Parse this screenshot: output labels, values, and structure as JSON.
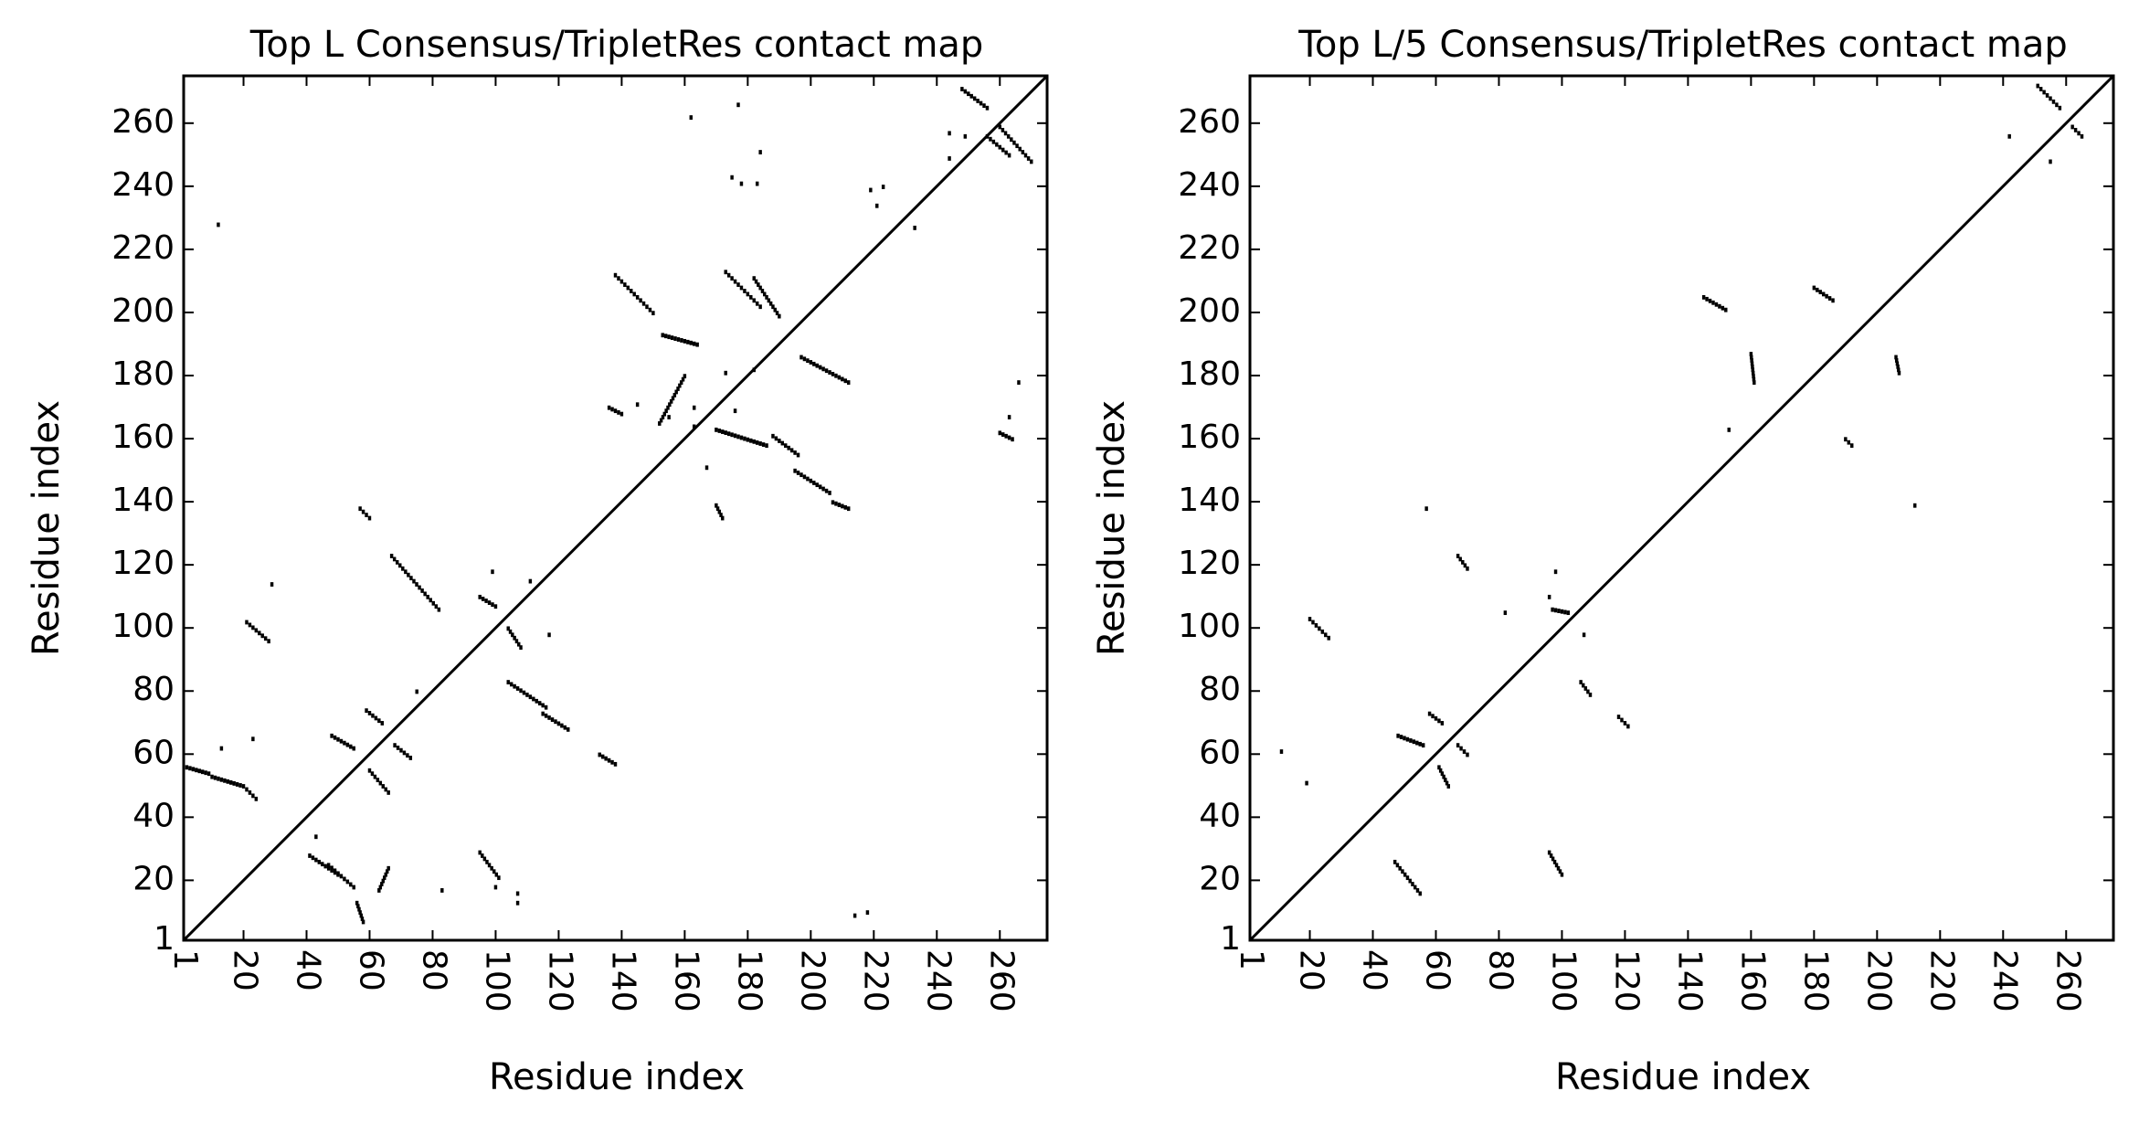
{
  "chart_data": [
    {
      "type": "scatter",
      "title": "Top L Consensus/TripletRes contact map",
      "xlabel": "Residue index",
      "ylabel": "Residue index",
      "xlim": [
        1,
        275
      ],
      "ylim": [
        1,
        275
      ],
      "x_ticks": [
        1,
        20,
        40,
        60,
        80,
        100,
        120,
        140,
        160,
        180,
        200,
        220,
        240,
        260
      ],
      "y_ticks": [
        1,
        20,
        40,
        60,
        80,
        100,
        120,
        140,
        160,
        180,
        200,
        220,
        240,
        260
      ],
      "grid": false,
      "diagonal": true,
      "segments": [
        {
          "x": [
            2,
            9
          ],
          "y": [
            56,
            54
          ]
        },
        {
          "x": [
            10,
            20
          ],
          "y": [
            53,
            50
          ]
        },
        {
          "x": [
            21,
            24
          ],
          "y": [
            49,
            46
          ]
        },
        {
          "x": [
            21,
            28
          ],
          "y": [
            102,
            96
          ]
        },
        {
          "x": [
            47,
            55
          ],
          "y": [
            25,
            18
          ]
        },
        {
          "x": [
            41,
            50
          ],
          "y": [
            28,
            22
          ]
        },
        {
          "x": [
            48,
            55
          ],
          "y": [
            66,
            62
          ]
        },
        {
          "x": [
            59,
            64
          ],
          "y": [
            74,
            70
          ]
        },
        {
          "x": [
            60,
            66
          ],
          "y": [
            55,
            48
          ]
        },
        {
          "x": [
            68,
            73
          ],
          "y": [
            63,
            59
          ]
        },
        {
          "x": [
            67,
            82
          ],
          "y": [
            123,
            106
          ]
        },
        {
          "x": [
            95,
            101
          ],
          "y": [
            29,
            21
          ]
        },
        {
          "x": [
            95,
            100
          ],
          "y": [
            110,
            107
          ]
        },
        {
          "x": [
            104,
            108
          ],
          "y": [
            100,
            94
          ]
        },
        {
          "x": [
            104,
            116
          ],
          "y": [
            83,
            75
          ]
        },
        {
          "x": [
            115,
            123
          ],
          "y": [
            73,
            68
          ]
        },
        {
          "x": [
            57,
            60
          ],
          "y": [
            138,
            135
          ]
        },
        {
          "x": [
            56,
            58
          ],
          "y": [
            13,
            7
          ]
        },
        {
          "x": [
            63,
            66
          ],
          "y": [
            17,
            24
          ]
        },
        {
          "x": [
            133,
            138
          ],
          "y": [
            60,
            57
          ]
        },
        {
          "x": [
            136,
            140
          ],
          "y": [
            170,
            168
          ]
        },
        {
          "x": [
            138,
            150
          ],
          "y": [
            212,
            200
          ]
        },
        {
          "x": [
            153,
            164
          ],
          "y": [
            193,
            190
          ]
        },
        {
          "x": [
            170,
            172
          ],
          "y": [
            139,
            135
          ]
        },
        {
          "x": [
            173,
            184
          ],
          "y": [
            213,
            202
          ]
        },
        {
          "x": [
            182,
            190
          ],
          "y": [
            211,
            199
          ]
        },
        {
          "x": [
            188,
            196
          ],
          "y": [
            161,
            155
          ]
        },
        {
          "x": [
            195,
            206
          ],
          "y": [
            150,
            143
          ]
        },
        {
          "x": [
            207,
            212
          ],
          "y": [
            140,
            138
          ]
        },
        {
          "x": [
            197,
            212
          ],
          "y": [
            186,
            178
          ]
        },
        {
          "x": [
            170,
            186
          ],
          "y": [
            163,
            158
          ]
        },
        {
          "x": [
            152,
            160
          ],
          "y": [
            165,
            180
          ]
        },
        {
          "x": [
            248,
            256
          ],
          "y": [
            271,
            265
          ]
        },
        {
          "x": [
            256,
            263
          ],
          "y": [
            256,
            250
          ]
        },
        {
          "x": [
            260,
            264
          ],
          "y": [
            162,
            160
          ]
        },
        {
          "x": [
            260,
            270
          ],
          "y": [
            259,
            248
          ]
        }
      ],
      "points": [
        [
          12,
          228
        ],
        [
          29,
          114
        ],
        [
          99,
          118
        ],
        [
          111,
          115
        ],
        [
          117,
          98
        ],
        [
          23,
          65
        ],
        [
          13,
          62
        ],
        [
          43,
          34
        ],
        [
          83,
          17
        ],
        [
          107,
          16
        ],
        [
          107,
          13
        ],
        [
          100,
          18
        ],
        [
          75,
          80
        ],
        [
          162,
          262
        ],
        [
          177,
          266
        ],
        [
          184,
          251
        ],
        [
          175,
          243
        ],
        [
          178,
          241
        ],
        [
          183,
          241
        ],
        [
          219,
          239
        ],
        [
          223,
          240
        ],
        [
          221,
          234
        ],
        [
          233,
          227
        ],
        [
          244,
          257
        ],
        [
          244,
          249
        ],
        [
          249,
          256
        ],
        [
          263,
          167
        ],
        [
          266,
          178
        ],
        [
          218,
          10
        ],
        [
          214,
          9
        ],
        [
          167,
          151
        ],
        [
          163,
          164
        ],
        [
          176,
          169
        ],
        [
          182,
          182
        ],
        [
          173,
          181
        ],
        [
          145,
          171
        ],
        [
          155,
          167
        ],
        [
          163,
          170
        ]
      ]
    },
    {
      "type": "scatter",
      "title": "Top L/5 Consensus/TripletRes contact map",
      "xlabel": "Residue index",
      "ylabel": "Residue index",
      "xlim": [
        1,
        275
      ],
      "ylim": [
        1,
        275
      ],
      "x_ticks": [
        1,
        20,
        40,
        60,
        80,
        100,
        120,
        140,
        160,
        180,
        200,
        220,
        240,
        260
      ],
      "y_ticks": [
        1,
        20,
        40,
        60,
        80,
        100,
        120,
        140,
        160,
        180,
        200,
        220,
        240,
        260
      ],
      "grid": false,
      "diagonal": true,
      "segments": [
        {
          "x": [
            20,
            26
          ],
          "y": [
            103,
            97
          ]
        },
        {
          "x": [
            47,
            55
          ],
          "y": [
            26,
            16
          ]
        },
        {
          "x": [
            48,
            56
          ],
          "y": [
            66,
            63
          ]
        },
        {
          "x": [
            58,
            62
          ],
          "y": [
            73,
            70
          ]
        },
        {
          "x": [
            61,
            64
          ],
          "y": [
            56,
            50
          ]
        },
        {
          "x": [
            67,
            70
          ],
          "y": [
            63,
            60
          ]
        },
        {
          "x": [
            67,
            70
          ],
          "y": [
            123,
            119
          ]
        },
        {
          "x": [
            96,
            100
          ],
          "y": [
            29,
            22
          ]
        },
        {
          "x": [
            97,
            102
          ],
          "y": [
            106,
            105
          ]
        },
        {
          "x": [
            106,
            109
          ],
          "y": [
            83,
            79
          ]
        },
        {
          "x": [
            118,
            121
          ],
          "y": [
            72,
            69
          ]
        },
        {
          "x": [
            145,
            152
          ],
          "y": [
            205,
            201
          ]
        },
        {
          "x": [
            160,
            161
          ],
          "y": [
            187,
            178
          ]
        },
        {
          "x": [
            180,
            186
          ],
          "y": [
            208,
            204
          ]
        },
        {
          "x": [
            206,
            207
          ],
          "y": [
            186,
            181
          ]
        },
        {
          "x": [
            190,
            192
          ],
          "y": [
            160,
            158
          ]
        },
        {
          "x": [
            251,
            258
          ],
          "y": [
            272,
            265
          ]
        },
        {
          "x": [
            262,
            265
          ],
          "y": [
            259,
            256
          ]
        }
      ],
      "points": [
        [
          11,
          61
        ],
        [
          19,
          51
        ],
        [
          57,
          138
        ],
        [
          82,
          105
        ],
        [
          96,
          110
        ],
        [
          98,
          118
        ],
        [
          107,
          98
        ],
        [
          153,
          163
        ],
        [
          212,
          139
        ],
        [
          242,
          256
        ],
        [
          255,
          248
        ]
      ]
    }
  ]
}
